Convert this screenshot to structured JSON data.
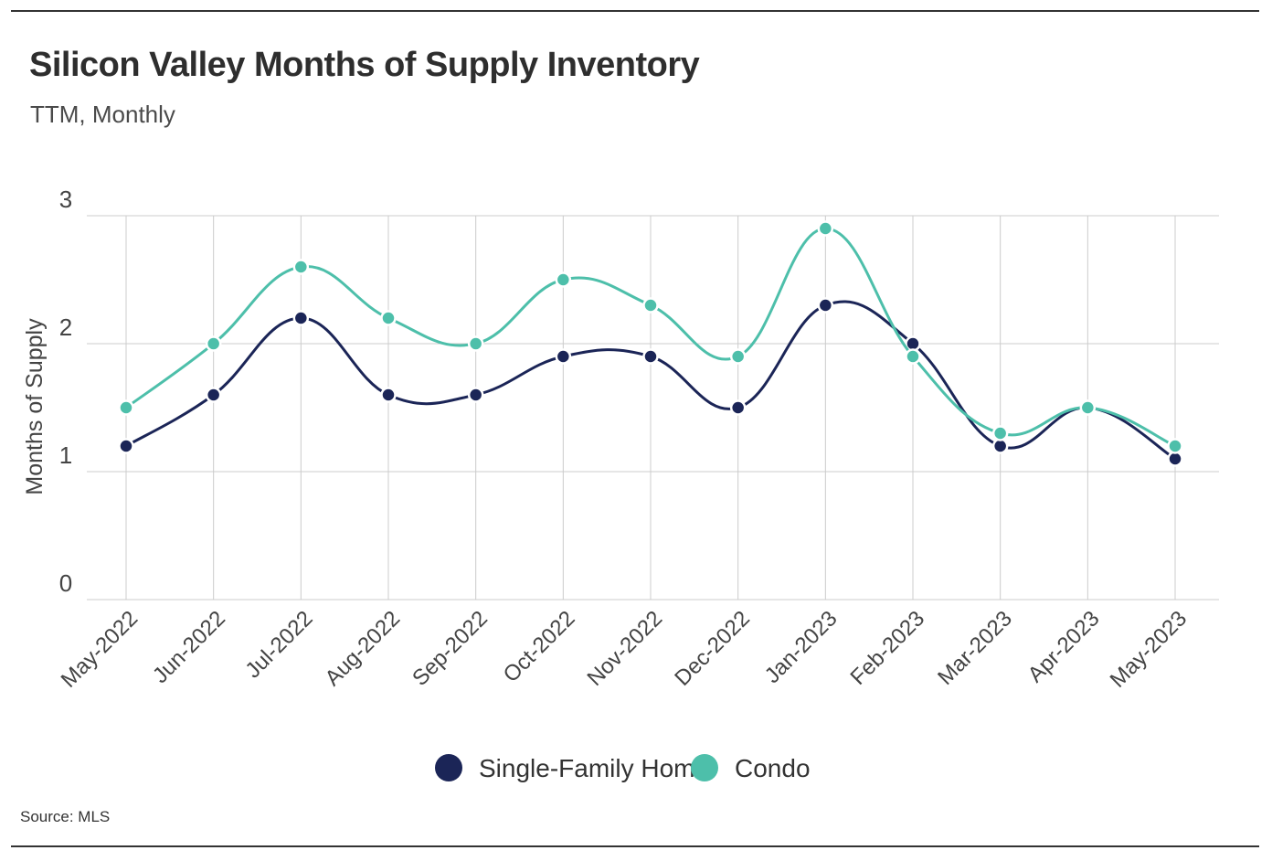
{
  "chart_data": {
    "type": "line",
    "title": "Silicon Valley Months of Supply Inventory",
    "subtitle": "TTM, Monthly",
    "ylabel": "Months of Supply",
    "xlabel": "",
    "ylim": [
      0,
      3
    ],
    "yticks": [
      "0",
      "1",
      "2",
      "3"
    ],
    "categories": [
      "May-2022",
      "Jun-2022",
      "Jul-2022",
      "Aug-2022",
      "Sep-2022",
      "Oct-2022",
      "Nov-2022",
      "Dec-2022",
      "Jan-2023",
      "Feb-2023",
      "Mar-2023",
      "Apr-2023",
      "May-2023"
    ],
    "series": [
      {
        "name": "Single-Family Home",
        "color": "#1b2557",
        "values": [
          1.2,
          1.6,
          2.2,
          1.6,
          1.6,
          1.9,
          1.9,
          1.5,
          2.3,
          2.0,
          1.2,
          1.5,
          1.1
        ]
      },
      {
        "name": "Condo",
        "color": "#4dbfaa",
        "values": [
          1.5,
          2.0,
          2.6,
          2.2,
          2.0,
          2.5,
          2.3,
          1.9,
          2.9,
          1.9,
          1.3,
          1.5,
          1.2
        ]
      }
    ],
    "grid": true,
    "legend_position": "bottom-center",
    "source": "Source:  MLS"
  }
}
